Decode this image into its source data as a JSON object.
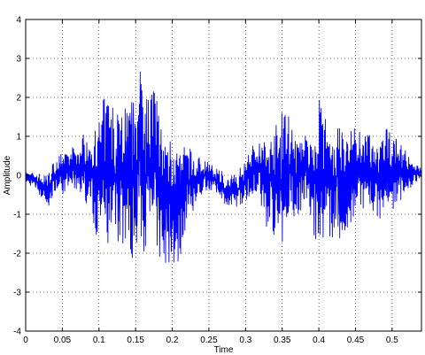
{
  "chart_data": {
    "type": "line",
    "xlabel": "Time",
    "ylabel": "Amplitude",
    "xlim": [
      0,
      0.54
    ],
    "ylim": [
      -4,
      4
    ],
    "xticks": [
      0,
      0.05,
      0.1,
      0.15,
      0.2,
      0.25,
      0.3,
      0.35,
      0.4,
      0.45,
      0.5
    ],
    "xtick_labels": [
      "0",
      "0.05",
      "0.1",
      "0.15",
      "0.2",
      "0.25",
      "0.3",
      "0.35",
      "0.4",
      "0.45",
      "0.5"
    ],
    "yticks": [
      -4,
      -3,
      -2,
      -1,
      0,
      1,
      2,
      3,
      4
    ],
    "ytick_labels": [
      "-4",
      "-3",
      "-2",
      "-1",
      "0",
      "1",
      "2",
      "3",
      "4"
    ],
    "grid": true,
    "grid_style": "dotted",
    "line_color": "#0000ff",
    "series": [
      {
        "x": [
          0,
          0.01,
          0.02,
          0.03,
          0.04,
          0.05,
          0.06,
          0.07,
          0.08,
          0.09,
          0.1,
          0.11,
          0.12,
          0.13,
          0.14,
          0.15,
          0.16,
          0.17,
          0.18,
          0.19,
          0.2,
          0.21,
          0.22,
          0.23,
          0.24,
          0.25,
          0.26,
          0.27,
          0.28,
          0.29,
          0.3,
          0.31,
          0.32,
          0.33,
          0.34,
          0.35,
          0.36,
          0.37,
          0.38,
          0.39,
          0.4,
          0.41,
          0.42,
          0.43,
          0.44,
          0.45,
          0.46,
          0.47,
          0.48,
          0.49,
          0.5,
          0.51,
          0.52,
          0.53,
          0.54
        ],
        "upper": [
          0.1,
          0.1,
          0.05,
          0.15,
          0.4,
          0.7,
          0.6,
          0.9,
          1.2,
          1.3,
          1.6,
          2.2,
          2.6,
          2.0,
          2.4,
          2.3,
          3.1,
          2.6,
          2.2,
          1.5,
          1.6,
          0.9,
          0.8,
          0.6,
          0.5,
          0.4,
          0.25,
          0.1,
          0.05,
          0.1,
          0.6,
          0.8,
          1.2,
          1.0,
          1.6,
          1.9,
          1.6,
          1.3,
          1.2,
          1.1,
          2.0,
          1.6,
          1.3,
          1.5,
          1.3,
          1.6,
          1.1,
          1.2,
          1.0,
          1.2,
          1.3,
          1.1,
          0.6,
          0.3,
          0.2
        ],
        "lower": [
          -0.2,
          -0.3,
          -0.6,
          -0.9,
          -0.5,
          -0.5,
          -0.4,
          -0.5,
          -0.8,
          -1.2,
          -1.7,
          -2.2,
          -2.1,
          -2.2,
          -2.3,
          -2.3,
          -2.2,
          -1.9,
          -2.5,
          -2.8,
          -2.8,
          -2.3,
          -1.3,
          -0.9,
          -0.6,
          -0.4,
          -0.5,
          -0.8,
          -0.9,
          -0.9,
          -0.7,
          -0.6,
          -0.8,
          -1.5,
          -1.8,
          -1.8,
          -1.4,
          -1.1,
          -1.0,
          -1.3,
          -2.1,
          -1.7,
          -1.7,
          -2.2,
          -1.6,
          -1.3,
          -0.9,
          -1.0,
          -1.2,
          -1.2,
          -0.9,
          -0.8,
          -0.5,
          -0.2,
          -0.1
        ]
      }
    ]
  }
}
